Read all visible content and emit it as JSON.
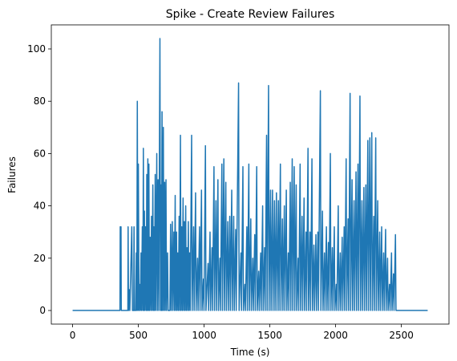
{
  "chart_data": {
    "type": "line",
    "title": "Spike - Create Review Failures",
    "xlabel": "Time (s)",
    "ylabel": "Failures",
    "xlim": [
      -162,
      2862
    ],
    "ylim": [
      -5.2,
      109.2
    ],
    "xticks": [
      0,
      500,
      1000,
      1500,
      2000,
      2500
    ],
    "yticks": [
      0,
      20,
      40,
      60,
      80,
      100
    ],
    "grid": false,
    "legend": "none",
    "line_color": "#1f77b4",
    "series": [
      {
        "points": [
          [
            0,
            0
          ],
          [
            360,
            0
          ],
          [
            362,
            32
          ],
          [
            368,
            32
          ],
          [
            370,
            0
          ],
          [
            420,
            0
          ],
          [
            422,
            32
          ],
          [
            425,
            0
          ],
          [
            430,
            8
          ],
          [
            435,
            0
          ],
          [
            450,
            32
          ],
          [
            455,
            0
          ],
          [
            465,
            0
          ],
          [
            467,
            32
          ],
          [
            470,
            0
          ],
          [
            480,
            0
          ],
          [
            484,
            22
          ],
          [
            488,
            0
          ],
          [
            492,
            80
          ],
          [
            496,
            0
          ],
          [
            500,
            56
          ],
          [
            505,
            0
          ],
          [
            510,
            10
          ],
          [
            515,
            0
          ],
          [
            520,
            22
          ],
          [
            524,
            0
          ],
          [
            530,
            32
          ],
          [
            534,
            0
          ],
          [
            538,
            62
          ],
          [
            542,
            0
          ],
          [
            546,
            38
          ],
          [
            550,
            0
          ],
          [
            555,
            32
          ],
          [
            560,
            0
          ],
          [
            564,
            52
          ],
          [
            568,
            0
          ],
          [
            572,
            58
          ],
          [
            576,
            0
          ],
          [
            580,
            56
          ],
          [
            584,
            0
          ],
          [
            590,
            28
          ],
          [
            594,
            0
          ],
          [
            600,
            36
          ],
          [
            604,
            0
          ],
          [
            610,
            48
          ],
          [
            614,
            0
          ],
          [
            618,
            32
          ],
          [
            622,
            0
          ],
          [
            628,
            52
          ],
          [
            632,
            0
          ],
          [
            640,
            60
          ],
          [
            644,
            0
          ],
          [
            650,
            50
          ],
          [
            655,
            0
          ],
          [
            664,
            104
          ],
          [
            668,
            0
          ],
          [
            672,
            48
          ],
          [
            676,
            0
          ],
          [
            680,
            76
          ],
          [
            684,
            0
          ],
          [
            690,
            70
          ],
          [
            694,
            0
          ],
          [
            700,
            49
          ],
          [
            704,
            0
          ],
          [
            710,
            50
          ],
          [
            714,
            0
          ],
          [
            722,
            22
          ],
          [
            726,
            0
          ],
          [
            740,
            0
          ],
          [
            745,
            33
          ],
          [
            750,
            0
          ],
          [
            758,
            34
          ],
          [
            762,
            0
          ],
          [
            770,
            30
          ],
          [
            774,
            0
          ],
          [
            780,
            44
          ],
          [
            784,
            0
          ],
          [
            790,
            30
          ],
          [
            794,
            0
          ],
          [
            800,
            22
          ],
          [
            804,
            0
          ],
          [
            810,
            36
          ],
          [
            814,
            0
          ],
          [
            820,
            67
          ],
          [
            824,
            0
          ],
          [
            830,
            32
          ],
          [
            834,
            0
          ],
          [
            840,
            43
          ],
          [
            844,
            0
          ],
          [
            850,
            34
          ],
          [
            854,
            0
          ],
          [
            860,
            40
          ],
          [
            864,
            0
          ],
          [
            870,
            24
          ],
          [
            874,
            0
          ],
          [
            880,
            34
          ],
          [
            884,
            0
          ],
          [
            890,
            22
          ],
          [
            894,
            0
          ],
          [
            905,
            67
          ],
          [
            909,
            0
          ],
          [
            920,
            32
          ],
          [
            924,
            0
          ],
          [
            935,
            45
          ],
          [
            939,
            0
          ],
          [
            950,
            20
          ],
          [
            954,
            0
          ],
          [
            965,
            32
          ],
          [
            969,
            0
          ],
          [
            980,
            46
          ],
          [
            984,
            0
          ],
          [
            995,
            12
          ],
          [
            999,
            0
          ],
          [
            1010,
            63
          ],
          [
            1014,
            0
          ],
          [
            1030,
            18
          ],
          [
            1034,
            0
          ],
          [
            1045,
            30
          ],
          [
            1049,
            0
          ],
          [
            1060,
            24
          ],
          [
            1064,
            0
          ],
          [
            1075,
            55
          ],
          [
            1079,
            0
          ],
          [
            1090,
            42
          ],
          [
            1094,
            0
          ],
          [
            1105,
            50
          ],
          [
            1109,
            0
          ],
          [
            1120,
            20
          ],
          [
            1124,
            0
          ],
          [
            1135,
            56
          ],
          [
            1139,
            0
          ],
          [
            1150,
            58
          ],
          [
            1154,
            0
          ],
          [
            1165,
            49
          ],
          [
            1169,
            0
          ],
          [
            1180,
            34
          ],
          [
            1184,
            0
          ],
          [
            1195,
            36
          ],
          [
            1199,
            0
          ],
          [
            1210,
            46
          ],
          [
            1214,
            0
          ],
          [
            1225,
            36
          ],
          [
            1229,
            0
          ],
          [
            1240,
            31
          ],
          [
            1244,
            0
          ],
          [
            1262,
            87
          ],
          [
            1266,
            0
          ],
          [
            1280,
            22
          ],
          [
            1284,
            0
          ],
          [
            1295,
            55
          ],
          [
            1299,
            0
          ],
          [
            1310,
            10
          ],
          [
            1314,
            0
          ],
          [
            1325,
            32
          ],
          [
            1329,
            0
          ],
          [
            1340,
            56
          ],
          [
            1344,
            0
          ],
          [
            1355,
            35
          ],
          [
            1359,
            0
          ],
          [
            1370,
            20
          ],
          [
            1374,
            0
          ],
          [
            1385,
            29
          ],
          [
            1389,
            0
          ],
          [
            1400,
            55
          ],
          [
            1404,
            0
          ],
          [
            1415,
            15
          ],
          [
            1419,
            0
          ],
          [
            1430,
            22
          ],
          [
            1434,
            0
          ],
          [
            1445,
            40
          ],
          [
            1449,
            0
          ],
          [
            1460,
            24
          ],
          [
            1464,
            0
          ],
          [
            1475,
            67
          ],
          [
            1479,
            0
          ],
          [
            1490,
            86
          ],
          [
            1494,
            0
          ],
          [
            1505,
            46
          ],
          [
            1509,
            0
          ],
          [
            1520,
            46
          ],
          [
            1524,
            0
          ],
          [
            1535,
            42
          ],
          [
            1539,
            0
          ],
          [
            1550,
            45
          ],
          [
            1554,
            0
          ],
          [
            1565,
            42
          ],
          [
            1569,
            0
          ],
          [
            1580,
            56
          ],
          [
            1584,
            0
          ],
          [
            1595,
            35
          ],
          [
            1599,
            0
          ],
          [
            1610,
            40
          ],
          [
            1614,
            0
          ],
          [
            1625,
            46
          ],
          [
            1629,
            0
          ],
          [
            1640,
            22
          ],
          [
            1644,
            0
          ],
          [
            1655,
            49
          ],
          [
            1659,
            0
          ],
          [
            1670,
            58
          ],
          [
            1674,
            0
          ],
          [
            1685,
            55
          ],
          [
            1689,
            0
          ],
          [
            1700,
            48
          ],
          [
            1704,
            0
          ],
          [
            1715,
            20
          ],
          [
            1719,
            0
          ],
          [
            1730,
            56
          ],
          [
            1734,
            0
          ],
          [
            1745,
            36
          ],
          [
            1749,
            0
          ],
          [
            1760,
            43
          ],
          [
            1764,
            0
          ],
          [
            1775,
            30
          ],
          [
            1779,
            0
          ],
          [
            1790,
            62
          ],
          [
            1794,
            0
          ],
          [
            1805,
            30
          ],
          [
            1809,
            0
          ],
          [
            1820,
            58
          ],
          [
            1824,
            0
          ],
          [
            1835,
            25
          ],
          [
            1839,
            0
          ],
          [
            1850,
            29
          ],
          [
            1854,
            0
          ],
          [
            1865,
            30
          ],
          [
            1869,
            0
          ],
          [
            1884,
            84
          ],
          [
            1888,
            0
          ],
          [
            1900,
            38
          ],
          [
            1904,
            0
          ],
          [
            1915,
            22
          ],
          [
            1919,
            0
          ],
          [
            1930,
            32
          ],
          [
            1934,
            0
          ],
          [
            1945,
            26
          ],
          [
            1949,
            0
          ],
          [
            1960,
            60
          ],
          [
            1964,
            0
          ],
          [
            1975,
            24
          ],
          [
            1979,
            0
          ],
          [
            1990,
            32
          ],
          [
            1994,
            0
          ],
          [
            2005,
            10
          ],
          [
            2009,
            0
          ],
          [
            2020,
            40
          ],
          [
            2024,
            0
          ],
          [
            2035,
            22
          ],
          [
            2039,
            0
          ],
          [
            2050,
            28
          ],
          [
            2054,
            0
          ],
          [
            2065,
            32
          ],
          [
            2069,
            0
          ],
          [
            2080,
            58
          ],
          [
            2084,
            0
          ],
          [
            2095,
            35
          ],
          [
            2099,
            0
          ],
          [
            2110,
            83
          ],
          [
            2114,
            0
          ],
          [
            2125,
            50
          ],
          [
            2129,
            0
          ],
          [
            2140,
            42
          ],
          [
            2144,
            0
          ],
          [
            2155,
            53
          ],
          [
            2159,
            0
          ],
          [
            2170,
            56
          ],
          [
            2174,
            0
          ],
          [
            2185,
            82
          ],
          [
            2189,
            0
          ],
          [
            2200,
            42
          ],
          [
            2204,
            0
          ],
          [
            2215,
            47
          ],
          [
            2219,
            0
          ],
          [
            2230,
            48
          ],
          [
            2234,
            0
          ],
          [
            2245,
            65
          ],
          [
            2249,
            0
          ],
          [
            2260,
            66
          ],
          [
            2264,
            0
          ],
          [
            2275,
            68
          ],
          [
            2279,
            0
          ],
          [
            2290,
            36
          ],
          [
            2294,
            0
          ],
          [
            2305,
            66
          ],
          [
            2309,
            0
          ],
          [
            2320,
            42
          ],
          [
            2324,
            0
          ],
          [
            2335,
            30
          ],
          [
            2339,
            0
          ],
          [
            2350,
            32
          ],
          [
            2354,
            0
          ],
          [
            2365,
            22
          ],
          [
            2369,
            0
          ],
          [
            2380,
            31
          ],
          [
            2384,
            0
          ],
          [
            2395,
            20
          ],
          [
            2399,
            0
          ],
          [
            2410,
            10
          ],
          [
            2414,
            0
          ],
          [
            2425,
            22
          ],
          [
            2429,
            0
          ],
          [
            2440,
            14
          ],
          [
            2444,
            0
          ],
          [
            2455,
            29
          ],
          [
            2459,
            0
          ],
          [
            2700,
            0
          ]
        ]
      }
    ]
  }
}
